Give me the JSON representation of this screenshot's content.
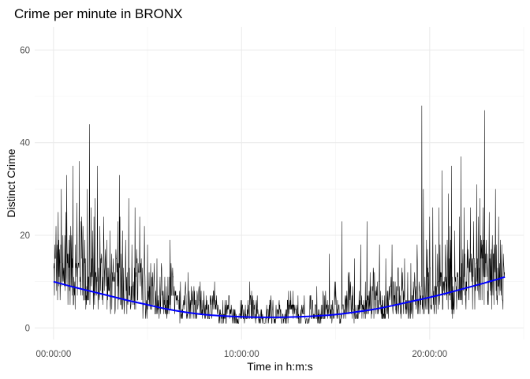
{
  "chart_data": {
    "type": "line",
    "title": "Crime per minute in BRONX",
    "xlabel": "Time in h:m:s",
    "ylabel": "Distinct Crime",
    "x_unit": "minutes since 00:00:00",
    "xlim": [
      -60,
      1500
    ],
    "ylim": [
      -2.5,
      65
    ],
    "x_ticks": [
      {
        "value": 0,
        "label": "00:00:00"
      },
      {
        "value": 600,
        "label": "10:00:00"
      },
      {
        "value": 1200,
        "label": "20:00:00"
      }
    ],
    "y_ticks": [
      {
        "value": 0,
        "label": "0"
      },
      {
        "value": 20,
        "label": "20"
      },
      {
        "value": 40,
        "label": "40"
      },
      {
        "value": 60,
        "label": "60"
      }
    ],
    "grid": true,
    "series": [
      {
        "color": "#000000",
        "x": [
          0,
          15,
          30,
          45,
          60,
          75,
          90,
          105,
          120,
          135,
          150,
          165,
          180,
          195,
          210,
          225,
          240,
          255,
          270,
          285,
          300,
          315,
          330,
          345,
          360,
          375,
          390,
          405,
          420,
          435,
          450,
          465,
          480,
          495,
          510,
          525,
          540,
          555,
          570,
          585,
          600,
          615,
          630,
          645,
          660,
          675,
          690,
          705,
          720,
          735,
          750,
          765,
          780,
          795,
          810,
          825,
          840,
          855,
          870,
          885,
          900,
          915,
          930,
          945,
          960,
          975,
          990,
          1005,
          1020,
          1035,
          1050,
          1065,
          1080,
          1095,
          1110,
          1125,
          1140,
          1155,
          1170,
          1185,
          1200,
          1215,
          1230,
          1245,
          1260,
          1275,
          1290,
          1305,
          1320,
          1335,
          1350,
          1365,
          1380,
          1395,
          1410,
          1425
        ],
        "y": [
          11,
          13,
          9,
          14,
          12,
          10,
          15,
          8,
          10,
          9,
          11,
          12,
          7,
          8,
          12,
          9,
          7,
          6,
          10,
          6,
          5,
          8,
          4,
          6,
          3,
          9,
          5,
          3,
          7,
          5,
          4,
          6,
          3,
          4,
          5,
          3,
          2,
          4,
          3,
          2,
          3,
          2,
          5,
          3,
          2,
          1,
          4,
          2,
          3,
          2,
          3,
          4,
          2,
          3,
          1,
          4,
          3,
          2,
          4,
          3,
          5,
          2,
          4,
          6,
          3,
          5,
          4,
          5,
          6,
          7,
          4,
          5,
          8,
          6,
          5,
          7,
          4,
          8,
          6,
          7,
          9,
          5,
          8,
          7,
          10,
          6,
          9,
          12,
          8,
          10,
          9,
          13,
          11,
          10,
          12,
          9
        ]
      },
      {
        "color": "#0000ff",
        "smooth": true,
        "x": [
          0,
          60,
          120,
          180,
          240,
          300,
          360,
          420,
          480,
          540,
          600,
          660,
          720,
          780,
          840,
          900,
          960,
          1020,
          1080,
          1140,
          1200,
          1260,
          1320,
          1380,
          1440
        ],
        "y": [
          10,
          8.9,
          7.9,
          6.9,
          5.9,
          5.0,
          4.1,
          3.4,
          2.9,
          2.6,
          2.4,
          2.3,
          2.3,
          2.4,
          2.6,
          2.9,
          3.4,
          4.0,
          4.8,
          5.7,
          6.6,
          7.6,
          8.7,
          9.8,
          11.0
        ]
      }
    ],
    "spikes": {
      "x": [
        4,
        8,
        12,
        15,
        20,
        25,
        30,
        38,
        42,
        50,
        55,
        62,
        70,
        75,
        82,
        90,
        100,
        108,
        115,
        120,
        125,
        132,
        140,
        148,
        160,
        170,
        180,
        185,
        190,
        200,
        210,
        220,
        230,
        240,
        250,
        258,
        260,
        265,
        270,
        275,
        280,
        290,
        300,
        310,
        320,
        330,
        340,
        345,
        355,
        360,
        370,
        380,
        390,
        405,
        420,
        430,
        440,
        450,
        465,
        480,
        500,
        520,
        540,
        560,
        600,
        620,
        650,
        680,
        700,
        720,
        750,
        780,
        800,
        820,
        840,
        860,
        880,
        900,
        920,
        940,
        960,
        980,
        1000,
        1010,
        1020,
        1040,
        1060,
        1080,
        1100,
        1120,
        1140,
        1160,
        1175,
        1180,
        1190,
        1200,
        1210,
        1220,
        1230,
        1240,
        1250,
        1260,
        1270,
        1280,
        1295,
        1300,
        1310,
        1320,
        1330,
        1340,
        1350,
        1360,
        1370,
        1375,
        1380,
        1390,
        1400,
        1410,
        1420,
        1430,
        1435,
        1440
      ],
      "y": [
        18,
        22,
        16,
        25,
        14,
        30,
        20,
        15,
        33,
        19,
        22,
        35,
        18,
        27,
        36,
        24,
        19,
        30,
        44,
        26,
        21,
        28,
        35,
        22,
        24,
        19,
        21,
        16,
        15,
        15,
        33,
        21,
        19,
        28,
        18,
        13,
        26,
        17,
        14,
        24,
        15,
        22,
        18,
        14,
        10,
        15,
        11,
        13,
        11,
        9,
        11,
        13,
        8,
        10,
        8,
        7,
        9,
        8,
        6,
        8,
        7,
        7,
        6,
        7,
        6,
        6,
        7,
        5,
        6,
        6,
        8,
        7,
        7,
        7,
        9,
        8,
        16,
        10,
        23,
        11,
        15,
        18,
        23,
        12,
        13,
        18,
        15,
        18,
        13,
        15,
        14,
        18,
        48,
        30,
        19,
        24,
        26,
        18,
        26,
        34,
        18,
        29,
        35,
        21,
        24,
        37,
        26,
        19,
        26,
        23,
        31,
        28,
        26,
        47,
        19,
        25,
        20,
        30,
        24,
        18,
        16,
        20
      ]
    }
  }
}
